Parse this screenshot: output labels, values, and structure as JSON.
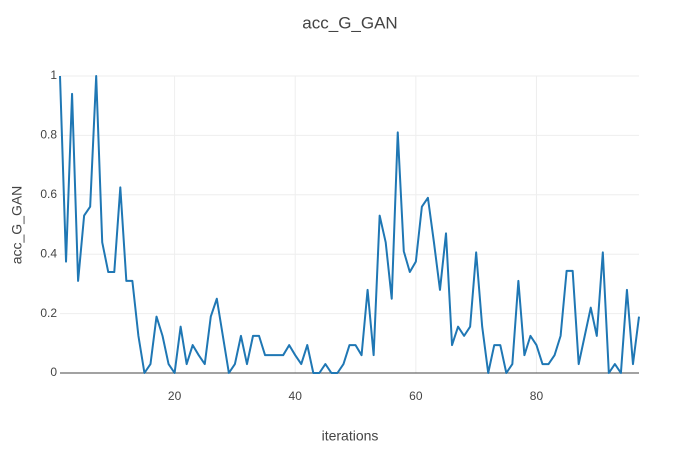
{
  "chart_data": {
    "type": "line",
    "title": "acc_G_GAN",
    "x_label": "iterations",
    "y_label": "acc_G_GAN",
    "x": [
      1,
      2,
      3,
      4,
      5,
      6,
      7,
      8,
      9,
      10,
      11,
      12,
      13,
      14,
      15,
      16,
      17,
      18,
      19,
      20,
      21,
      22,
      23,
      24,
      25,
      26,
      27,
      28,
      29,
      30,
      31,
      32,
      33,
      34,
      35,
      36,
      37,
      38,
      39,
      40,
      41,
      42,
      43,
      44,
      45,
      46,
      47,
      48,
      49,
      50,
      51,
      52,
      53,
      54,
      55,
      56,
      57,
      58,
      59,
      60,
      61,
      62,
      63,
      64,
      65,
      66,
      67,
      68,
      69,
      70,
      71,
      72,
      73,
      74,
      75,
      76,
      77,
      78,
      79,
      80,
      81,
      82,
      83,
      84,
      85,
      86,
      87,
      88,
      89,
      90,
      91,
      92,
      93,
      94,
      95,
      96,
      97
    ],
    "series": [
      {
        "name": "acc_G_GAN",
        "color": "#1f77b4",
        "values": [
          1.0,
          0.375,
          0.94,
          0.31,
          0.53,
          0.56,
          1.0,
          0.44,
          0.34,
          0.34,
          0.625,
          0.31,
          0.31,
          0.125,
          0,
          0.03,
          0.19,
          0.125,
          0.03,
          0,
          0.156,
          0.03,
          0.094,
          0.06,
          0.03,
          0.19,
          0.25,
          0.125,
          0,
          0.03,
          0.125,
          0.03,
          0.125,
          0.125,
          0.06,
          0.06,
          0.06,
          0.06,
          0.094,
          0.06,
          0.03,
          0.094,
          0,
          0,
          0.03,
          0,
          0,
          0.03,
          0.094,
          0.094,
          0.06,
          0.28,
          0.06,
          0.53,
          0.44,
          0.25,
          0.81,
          0.41,
          0.34,
          0.375,
          0.56,
          0.59,
          0.44,
          0.28,
          0.47,
          0.094,
          0.156,
          0.125,
          0.156,
          0.406,
          0.156,
          0,
          0.094,
          0.094,
          0,
          0.03,
          0.31,
          0.06,
          0.125,
          0.094,
          0.03,
          0.03,
          0.06,
          0.125,
          0.344,
          0.344,
          0.03,
          0.125,
          0.22,
          0.125,
          0.406,
          0,
          0.03,
          0,
          0.28,
          0.03,
          0.19
        ]
      }
    ],
    "xlim": [
      1,
      97
    ],
    "ylim": [
      0,
      1
    ],
    "xticks": [
      20,
      40,
      60,
      80
    ],
    "yticks": [
      0,
      0.2,
      0.4,
      0.6,
      0.8,
      1
    ],
    "grid": true
  }
}
